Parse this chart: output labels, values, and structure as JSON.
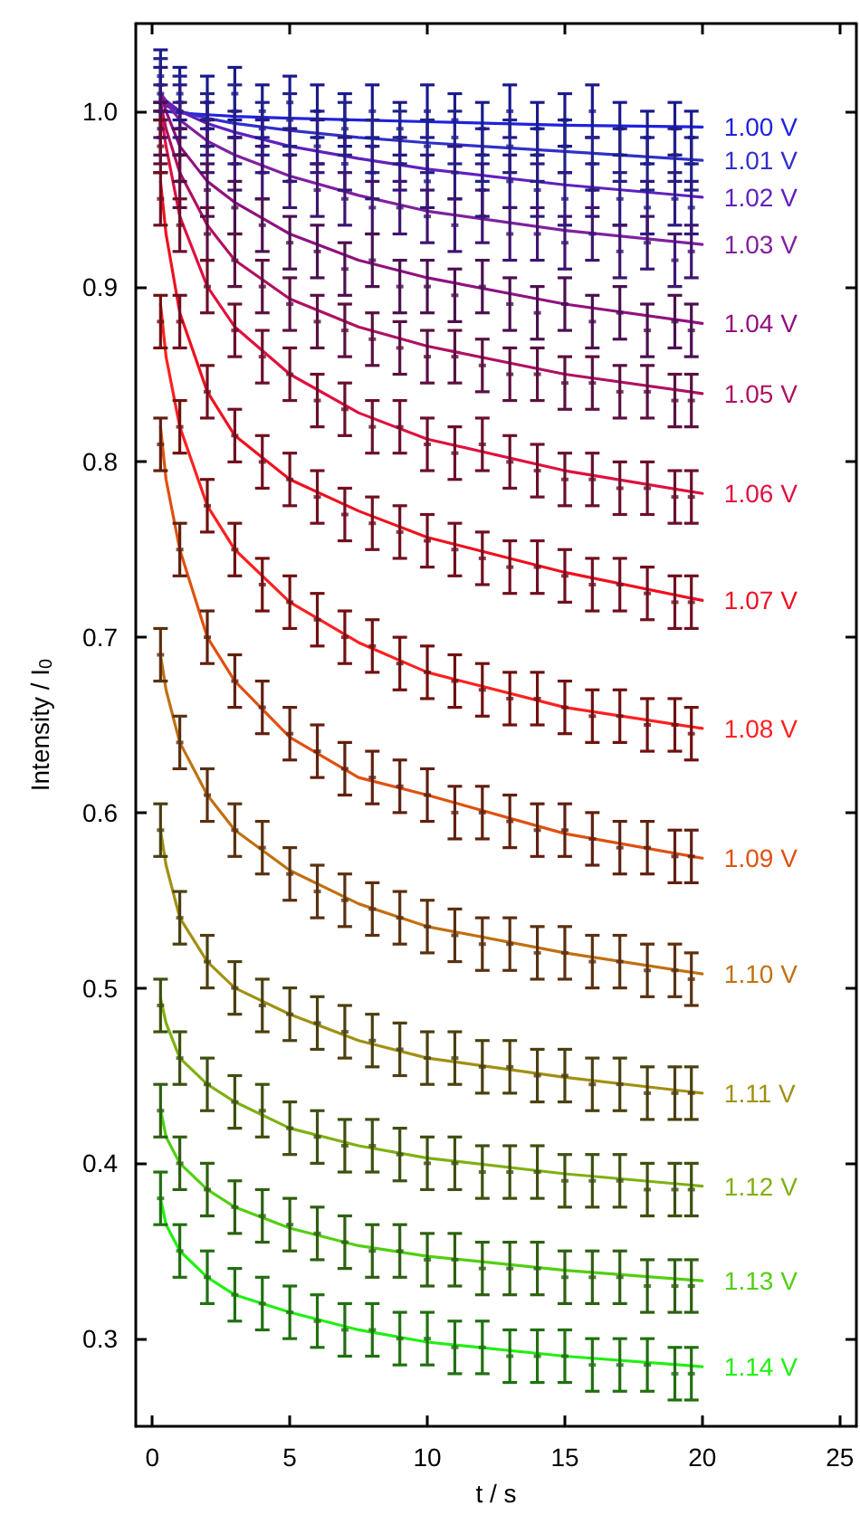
{
  "chart_data": {
    "type": "scatter",
    "xlabel": "t / s",
    "ylabel": "Intensity / I$_{0}$",
    "xlim": [
      -0.6,
      25.6
    ],
    "xticks": [
      0,
      5,
      10,
      15,
      20,
      25
    ],
    "ylim": [
      0.25,
      1.05
    ],
    "yticks": [
      0.3,
      0.4,
      0.5,
      0.6,
      0.7,
      0.8,
      0.9,
      {
        "value": 1.0,
        "label": "1.0"
      }
    ],
    "grid": false,
    "legend": false,
    "marker": "square",
    "line_style": "solid",
    "x": [
      0.3,
      1,
      2,
      3,
      4,
      5,
      6,
      7,
      8,
      9,
      10,
      11,
      12,
      13,
      14,
      15,
      16,
      17,
      18,
      19,
      19.6
    ],
    "series": [
      {
        "color": "#1a1a8c",
        "values": [
          1.02,
          1.01,
          1.005,
          1.01,
          1.0,
          1.005,
          1.0,
          0.995,
          1.0,
          0.99,
          1.0,
          0.995,
          0.99,
          1.0,
          0.99,
          0.995,
          1.0,
          0.99,
          0.985,
          0.99,
          0.985
        ],
        "errors": [
          0.015,
          0.015,
          0.015,
          0.015,
          0.015,
          0.015,
          0.015,
          0.015,
          0.015,
          0.015,
          0.015,
          0.015,
          0.015,
          0.015,
          0.015,
          0.015,
          0.015,
          0.015,
          0.015,
          0.015,
          0.015
        ]
      },
      {
        "color": "#22228a",
        "values": [
          1.015,
          1.005,
          0.995,
          1.0,
          0.99,
          0.995,
          0.985,
          0.99,
          0.98,
          0.985,
          0.98,
          0.985,
          0.975,
          0.98,
          0.975,
          0.98,
          0.97,
          0.975,
          0.97,
          0.975,
          0.97
        ],
        "errors": [
          0.015,
          0.015,
          0.015,
          0.015,
          0.015,
          0.015,
          0.015,
          0.015,
          0.015,
          0.015,
          0.015,
          0.015,
          0.015,
          0.015,
          0.015,
          0.015,
          0.015,
          0.015,
          0.015,
          0.015,
          0.015
        ]
      },
      {
        "color": "#2a1a80",
        "values": [
          1.01,
          1.0,
          0.99,
          0.985,
          0.98,
          0.975,
          0.98,
          0.97,
          0.965,
          0.97,
          0.96,
          0.965,
          0.955,
          0.96,
          0.955,
          0.95,
          0.955,
          0.95,
          0.945,
          0.95,
          0.945
        ],
        "errors": [
          0.015,
          0.015,
          0.015,
          0.015,
          0.015,
          0.015,
          0.015,
          0.015,
          0.015,
          0.015,
          0.015,
          0.015,
          0.015,
          0.015,
          0.015,
          0.015,
          0.015,
          0.015,
          0.015,
          0.015,
          0.015
        ]
      },
      {
        "color": "#3d1570",
        "values": [
          1.0,
          0.99,
          0.98,
          0.97,
          0.965,
          0.96,
          0.955,
          0.95,
          0.945,
          0.945,
          0.94,
          0.935,
          0.94,
          0.93,
          0.93,
          0.925,
          0.93,
          0.92,
          0.925,
          0.915,
          0.92
        ],
        "errors": [
          0.015,
          0.015,
          0.015,
          0.015,
          0.015,
          0.015,
          0.015,
          0.015,
          0.015,
          0.015,
          0.015,
          0.015,
          0.015,
          0.015,
          0.015,
          0.015,
          0.015,
          0.015,
          0.015,
          0.015,
          0.015
        ]
      },
      {
        "color": "#4a1050",
        "values": [
          0.99,
          0.975,
          0.955,
          0.945,
          0.935,
          0.925,
          0.92,
          0.91,
          0.915,
          0.9,
          0.9,
          0.895,
          0.9,
          0.89,
          0.885,
          0.89,
          0.88,
          0.885,
          0.875,
          0.88,
          0.875
        ],
        "errors": [
          0.015,
          0.015,
          0.015,
          0.015,
          0.015,
          0.015,
          0.015,
          0.015,
          0.015,
          0.015,
          0.015,
          0.015,
          0.015,
          0.015,
          0.015,
          0.015,
          0.015,
          0.015,
          0.015,
          0.015,
          0.015
        ]
      },
      {
        "color": "#5a1040",
        "values": [
          0.985,
          0.96,
          0.93,
          0.915,
          0.9,
          0.89,
          0.88,
          0.875,
          0.87,
          0.865,
          0.86,
          0.86,
          0.855,
          0.85,
          0.85,
          0.845,
          0.845,
          0.84,
          0.84,
          0.835,
          0.835
        ],
        "errors": [
          0.015,
          0.015,
          0.015,
          0.015,
          0.015,
          0.015,
          0.015,
          0.015,
          0.015,
          0.015,
          0.015,
          0.015,
          0.015,
          0.015,
          0.015,
          0.015,
          0.015,
          0.015,
          0.015,
          0.015,
          0.015
        ]
      },
      {
        "color": "#6a0f2a",
        "values": [
          0.98,
          0.935,
          0.9,
          0.875,
          0.86,
          0.85,
          0.835,
          0.83,
          0.82,
          0.82,
          0.81,
          0.805,
          0.81,
          0.8,
          0.795,
          0.79,
          0.79,
          0.785,
          0.785,
          0.78,
          0.78
        ],
        "errors": [
          0.015,
          0.015,
          0.015,
          0.015,
          0.015,
          0.015,
          0.015,
          0.015,
          0.015,
          0.015,
          0.015,
          0.015,
          0.015,
          0.015,
          0.015,
          0.015,
          0.015,
          0.015,
          0.015,
          0.015,
          0.015
        ]
      },
      {
        "color": "#700f20",
        "values": [
          0.95,
          0.88,
          0.84,
          0.815,
          0.8,
          0.79,
          0.78,
          0.77,
          0.765,
          0.76,
          0.755,
          0.75,
          0.745,
          0.74,
          0.74,
          0.735,
          0.73,
          0.73,
          0.725,
          0.72,
          0.72
        ],
        "errors": [
          0.015,
          0.015,
          0.015,
          0.015,
          0.015,
          0.015,
          0.015,
          0.015,
          0.015,
          0.015,
          0.015,
          0.015,
          0.015,
          0.015,
          0.015,
          0.015,
          0.015,
          0.015,
          0.015,
          0.015,
          0.015
        ]
      },
      {
        "color": "#701010",
        "values": [
          0.88,
          0.82,
          0.775,
          0.75,
          0.73,
          0.72,
          0.71,
          0.7,
          0.695,
          0.685,
          0.68,
          0.675,
          0.67,
          0.665,
          0.665,
          0.66,
          0.655,
          0.655,
          0.65,
          0.65,
          0.645
        ],
        "errors": [
          0.015,
          0.015,
          0.015,
          0.015,
          0.015,
          0.015,
          0.015,
          0.015,
          0.015,
          0.015,
          0.015,
          0.015,
          0.015,
          0.015,
          0.015,
          0.015,
          0.015,
          0.015,
          0.015,
          0.015,
          0.015
        ]
      },
      {
        "color": "#602010",
        "values": [
          0.81,
          0.75,
          0.7,
          0.675,
          0.66,
          0.645,
          0.635,
          0.625,
          0.62,
          0.615,
          0.61,
          0.6,
          0.6,
          0.595,
          0.59,
          0.59,
          0.585,
          0.58,
          0.58,
          0.575,
          0.575
        ],
        "errors": [
          0.015,
          0.015,
          0.015,
          0.015,
          0.015,
          0.015,
          0.015,
          0.015,
          0.015,
          0.015,
          0.015,
          0.015,
          0.015,
          0.015,
          0.015,
          0.015,
          0.015,
          0.015,
          0.015,
          0.015,
          0.015
        ]
      },
      {
        "color": "#5a3010",
        "values": [
          0.69,
          0.64,
          0.61,
          0.59,
          0.58,
          0.565,
          0.555,
          0.55,
          0.545,
          0.54,
          0.535,
          0.53,
          0.525,
          0.525,
          0.52,
          0.52,
          0.515,
          0.515,
          0.51,
          0.51,
          0.505
        ],
        "errors": [
          0.015,
          0.015,
          0.015,
          0.015,
          0.015,
          0.015,
          0.015,
          0.015,
          0.015,
          0.015,
          0.015,
          0.015,
          0.015,
          0.015,
          0.015,
          0.015,
          0.015,
          0.015,
          0.015,
          0.015,
          0.015
        ]
      },
      {
        "color": "#4a4010",
        "values": [
          0.59,
          0.54,
          0.515,
          0.5,
          0.49,
          0.485,
          0.48,
          0.475,
          0.47,
          0.465,
          0.46,
          0.46,
          0.455,
          0.455,
          0.45,
          0.45,
          0.445,
          0.445,
          0.44,
          0.44,
          0.44
        ],
        "errors": [
          0.015,
          0.015,
          0.015,
          0.015,
          0.015,
          0.015,
          0.015,
          0.015,
          0.015,
          0.015,
          0.015,
          0.015,
          0.015,
          0.015,
          0.015,
          0.015,
          0.015,
          0.015,
          0.015,
          0.015,
          0.015
        ]
      },
      {
        "color": "#3d5010",
        "values": [
          0.49,
          0.46,
          0.445,
          0.435,
          0.43,
          0.42,
          0.415,
          0.41,
          0.41,
          0.405,
          0.4,
          0.4,
          0.395,
          0.395,
          0.395,
          0.39,
          0.39,
          0.39,
          0.385,
          0.385,
          0.385
        ],
        "errors": [
          0.015,
          0.015,
          0.015,
          0.015,
          0.015,
          0.015,
          0.015,
          0.015,
          0.015,
          0.015,
          0.015,
          0.015,
          0.015,
          0.015,
          0.015,
          0.015,
          0.015,
          0.015,
          0.015,
          0.015,
          0.015
        ]
      },
      {
        "color": "#2d6010",
        "values": [
          0.43,
          0.4,
          0.385,
          0.375,
          0.37,
          0.365,
          0.36,
          0.355,
          0.35,
          0.35,
          0.345,
          0.345,
          0.34,
          0.34,
          0.34,
          0.335,
          0.335,
          0.335,
          0.33,
          0.33,
          0.33
        ],
        "errors": [
          0.015,
          0.015,
          0.015,
          0.015,
          0.015,
          0.015,
          0.015,
          0.015,
          0.015,
          0.015,
          0.015,
          0.015,
          0.015,
          0.015,
          0.015,
          0.015,
          0.015,
          0.015,
          0.015,
          0.015,
          0.015
        ]
      },
      {
        "color": "#207010",
        "values": [
          0.38,
          0.35,
          0.335,
          0.325,
          0.32,
          0.315,
          0.31,
          0.305,
          0.305,
          0.3,
          0.3,
          0.295,
          0.295,
          0.29,
          0.29,
          0.29,
          0.285,
          0.285,
          0.285,
          0.28,
          0.28
        ],
        "errors": [
          0.015,
          0.015,
          0.015,
          0.015,
          0.015,
          0.015,
          0.015,
          0.015,
          0.015,
          0.015,
          0.015,
          0.015,
          0.015,
          0.015,
          0.015,
          0.015,
          0.015,
          0.015,
          0.015,
          0.015,
          0.015
        ]
      },
      {
        "type": "line",
        "name": "1.00 V",
        "marker": "none",
        "color": "#2020e0",
        "x": [
          0.3,
          0.5,
          1,
          2,
          3,
          5,
          7.5,
          10,
          15,
          20
        ],
        "values": [
          1.0,
          1.0,
          0.999,
          0.998,
          0.997,
          0.996,
          0.995,
          0.994,
          0.992,
          0.991
        ]
      },
      {
        "type": "line",
        "name": "1.01 V",
        "marker": "none",
        "color": "#3030c8",
        "x": [
          0.3,
          0.5,
          1,
          2,
          3,
          5,
          7.5,
          10,
          15,
          20
        ],
        "values": [
          1.005,
          1.003,
          1.0,
          0.996,
          0.993,
          0.989,
          0.985,
          0.982,
          0.977,
          0.972
        ]
      },
      {
        "type": "line",
        "name": "1.02 V",
        "marker": "none",
        "color": "#6020c0",
        "x": [
          0.3,
          0.5,
          1,
          2,
          3,
          5,
          7.5,
          10,
          15,
          20
        ],
        "values": [
          1.01,
          1.006,
          1.0,
          0.993,
          0.988,
          0.98,
          0.973,
          0.967,
          0.958,
          0.951
        ]
      },
      {
        "type": "line",
        "name": "1.03 V",
        "marker": "none",
        "color": "#8020a0",
        "x": [
          0.3,
          0.5,
          1,
          2,
          3,
          5,
          7.5,
          10,
          15,
          20
        ],
        "values": [
          1.01,
          1.005,
          0.995,
          0.983,
          0.975,
          0.963,
          0.952,
          0.943,
          0.932,
          0.924
        ]
      },
      {
        "type": "line",
        "name": "1.04 V",
        "marker": "none",
        "color": "#901080",
        "x": [
          0.3,
          0.5,
          1,
          2,
          3,
          5,
          7.5,
          10,
          15,
          20
        ],
        "values": [
          1.01,
          1.0,
          0.98,
          0.96,
          0.948,
          0.93,
          0.915,
          0.905,
          0.89,
          0.879
        ]
      },
      {
        "type": "line",
        "name": "1.05 V",
        "marker": "none",
        "color": "#b01060",
        "x": [
          0.3,
          0.5,
          1,
          2,
          3,
          5,
          7.5,
          10,
          15,
          20
        ],
        "values": [
          1.005,
          0.99,
          0.965,
          0.935,
          0.915,
          0.893,
          0.877,
          0.866,
          0.85,
          0.839
        ]
      },
      {
        "type": "line",
        "name": "1.06 V",
        "marker": "none",
        "color": "#e01040",
        "x": [
          0.3,
          0.5,
          1,
          2,
          3,
          5,
          7.5,
          10,
          15,
          20
        ],
        "values": [
          1.0,
          0.98,
          0.94,
          0.9,
          0.877,
          0.85,
          0.828,
          0.813,
          0.795,
          0.782
        ]
      },
      {
        "type": "line",
        "name": "1.07 V",
        "marker": "none",
        "color": "#f01020",
        "x": [
          0.3,
          0.5,
          1,
          2,
          3,
          5,
          7.5,
          10,
          15,
          20
        ],
        "values": [
          0.96,
          0.93,
          0.885,
          0.84,
          0.815,
          0.79,
          0.772,
          0.757,
          0.737,
          0.721
        ]
      },
      {
        "type": "line",
        "name": "1.08 V",
        "marker": "none",
        "color": "#ff2020",
        "x": [
          0.3,
          0.5,
          1,
          2,
          3,
          5,
          7.5,
          10,
          15,
          20
        ],
        "values": [
          0.89,
          0.86,
          0.82,
          0.775,
          0.75,
          0.72,
          0.697,
          0.68,
          0.66,
          0.648
        ]
      },
      {
        "type": "line",
        "name": "1.09 V",
        "marker": "none",
        "color": "#e05010",
        "x": [
          0.3,
          0.5,
          1,
          2,
          3,
          5,
          7.5,
          10,
          15,
          20
        ],
        "values": [
          0.82,
          0.79,
          0.75,
          0.7,
          0.675,
          0.643,
          0.62,
          0.61,
          0.588,
          0.574
        ]
      },
      {
        "type": "line",
        "name": "1.10 V",
        "marker": "none",
        "color": "#c07010",
        "x": [
          0.3,
          0.5,
          1,
          2,
          3,
          5,
          7.5,
          10,
          15,
          20
        ],
        "values": [
          0.69,
          0.67,
          0.64,
          0.61,
          0.59,
          0.567,
          0.548,
          0.535,
          0.52,
          0.508
        ]
      },
      {
        "type": "line",
        "name": "1.11 V",
        "marker": "none",
        "color": "#a09010",
        "x": [
          0.3,
          0.5,
          1,
          2,
          3,
          5,
          7.5,
          10,
          15,
          20
        ],
        "values": [
          0.59,
          0.57,
          0.54,
          0.515,
          0.5,
          0.485,
          0.47,
          0.46,
          0.449,
          0.44
        ]
      },
      {
        "type": "line",
        "name": "1.12 V",
        "marker": "none",
        "color": "#80b010",
        "x": [
          0.3,
          0.5,
          1,
          2,
          3,
          5,
          7.5,
          10,
          15,
          20
        ],
        "values": [
          0.494,
          0.48,
          0.46,
          0.445,
          0.435,
          0.42,
          0.41,
          0.403,
          0.394,
          0.387
        ]
      },
      {
        "type": "line",
        "name": "1.13 V",
        "marker": "none",
        "color": "#50d010",
        "x": [
          0.3,
          0.5,
          1,
          2,
          3,
          5,
          7.5,
          10,
          15,
          20
        ],
        "values": [
          0.431,
          0.415,
          0.4,
          0.385,
          0.375,
          0.363,
          0.353,
          0.347,
          0.339,
          0.333
        ]
      },
      {
        "type": "line",
        "name": "1.14 V",
        "marker": "none",
        "color": "#20f010",
        "x": [
          0.3,
          0.5,
          1,
          2,
          3,
          5,
          7.5,
          10,
          15,
          20
        ],
        "values": [
          0.38,
          0.365,
          0.35,
          0.335,
          0.325,
          0.315,
          0.305,
          0.298,
          0.29,
          0.284
        ]
      }
    ]
  }
}
